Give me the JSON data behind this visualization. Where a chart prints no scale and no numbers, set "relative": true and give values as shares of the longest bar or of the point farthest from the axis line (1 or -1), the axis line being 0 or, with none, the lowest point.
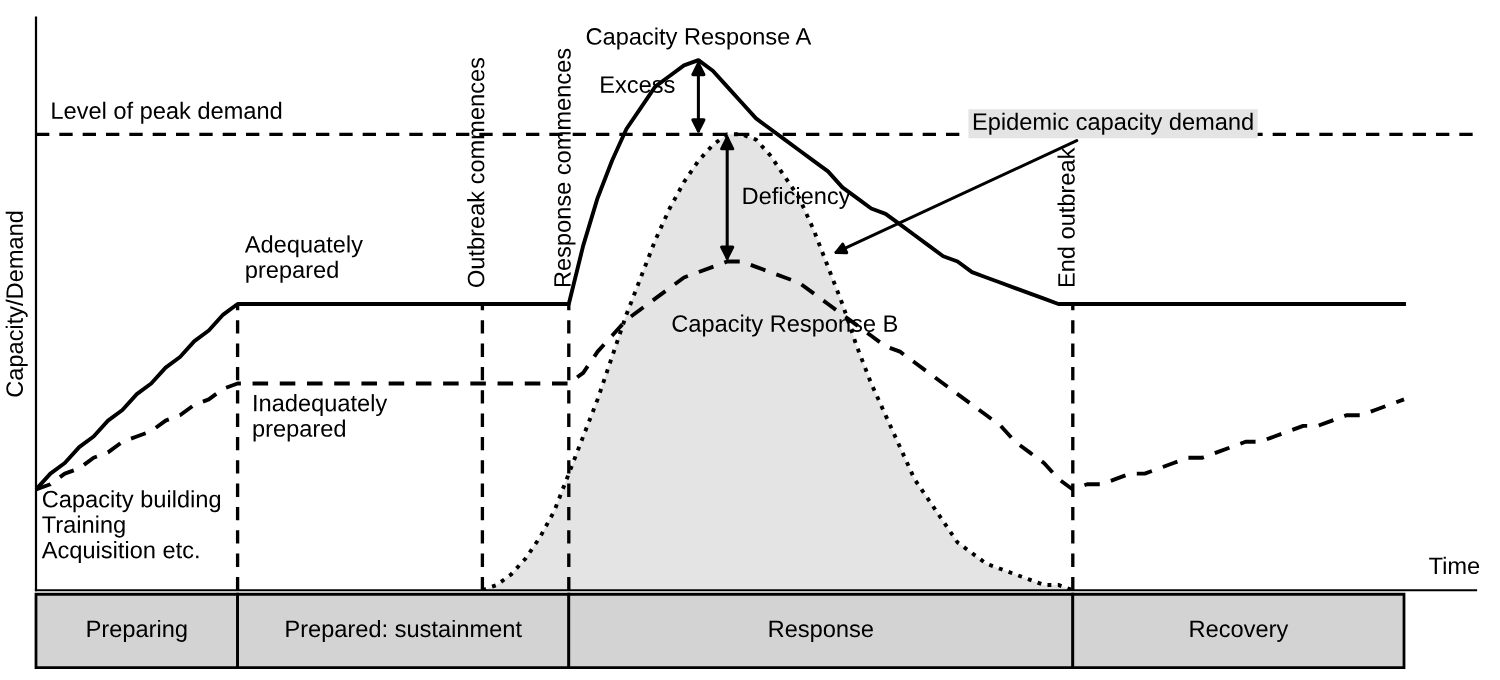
{
  "chart_data": {
    "type": "line",
    "relative": true,
    "xlabel": "Time",
    "ylabel": "Capacity/Demand",
    "categories": [
      null,
      null,
      null,
      null,
      null,
      null,
      null,
      null,
      null,
      null,
      null,
      null,
      null,
      null,
      null,
      null,
      null,
      null,
      null,
      null,
      null,
      null,
      null,
      null,
      null,
      null,
      null,
      null,
      null,
      null,
      null,
      null,
      null,
      null,
      null,
      null,
      null,
      null,
      null,
      null,
      null,
      null,
      null,
      null,
      null,
      null,
      null,
      null,
      null,
      null,
      null,
      null,
      null,
      null,
      null,
      null,
      null,
      null,
      null,
      null,
      null,
      null,
      null,
      null,
      null,
      null,
      null,
      null,
      null,
      null,
      null,
      null,
      null,
      null,
      null,
      null,
      null,
      null,
      null,
      null,
      null,
      null,
      null,
      null,
      null,
      null,
      null,
      null,
      null,
      null,
      null,
      null,
      null,
      null,
      null,
      null,
      null,
      null,
      null,
      null,
      null
    ],
    "series": [
      {
        "name": "Capacity Response A",
        "color": "#000000",
        "line_style": "solid",
        "values": [
          0.19,
          0.22,
          0.24,
          0.27,
          0.29,
          0.32,
          0.34,
          0.37,
          0.39,
          0.42,
          0.44,
          0.47,
          0.49,
          0.52,
          0.54,
          0.54,
          0.54,
          0.54,
          0.54,
          0.54,
          0.54,
          0.54,
          0.54,
          0.54,
          0.54,
          0.54,
          0.54,
          0.54,
          0.54,
          0.54,
          0.54,
          0.54,
          0.54,
          0.54,
          0.54,
          0.54,
          0.54,
          0.54,
          0.65,
          0.74,
          0.81,
          0.87,
          0.91,
          0.95,
          0.97,
          0.99,
          1.0,
          0.98,
          0.95,
          0.92,
          0.89,
          0.87,
          0.85,
          0.83,
          0.81,
          0.79,
          0.76,
          0.74,
          0.72,
          0.71,
          0.69,
          0.67,
          0.65,
          0.63,
          0.62,
          0.6,
          0.59,
          0.58,
          0.57,
          0.56,
          0.55,
          0.54,
          0.54,
          0.54,
          0.54,
          0.54,
          0.54,
          0.54,
          0.54,
          0.54,
          0.54,
          0.54,
          0.54,
          0.54,
          0.54,
          0.54,
          0.54,
          0.54,
          0.54,
          0.54,
          0.54,
          0.54,
          0.54,
          0.54,
          0.54,
          0.54,
          null,
          null,
          null,
          null,
          null
        ]
      },
      {
        "name": "Capacity Response B",
        "color": "#000000",
        "line_style": "dashed",
        "values": [
          0.19,
          0.2,
          0.22,
          0.23,
          0.25,
          0.26,
          0.28,
          0.29,
          0.3,
          0.32,
          0.33,
          0.35,
          0.36,
          0.38,
          0.39,
          0.39,
          0.39,
          0.39,
          0.39,
          0.39,
          0.39,
          0.39,
          0.39,
          0.39,
          0.39,
          0.39,
          0.39,
          0.39,
          0.39,
          0.39,
          0.39,
          0.39,
          0.39,
          0.39,
          0.39,
          0.39,
          0.39,
          0.39,
          0.41,
          0.45,
          0.48,
          0.51,
          0.53,
          0.55,
          0.57,
          0.59,
          0.6,
          0.61,
          0.62,
          0.62,
          0.61,
          0.6,
          0.59,
          0.58,
          0.56,
          0.54,
          0.52,
          0.5,
          0.48,
          0.46,
          0.45,
          0.43,
          0.41,
          0.39,
          0.37,
          0.35,
          0.33,
          0.31,
          0.28,
          0.26,
          0.24,
          0.21,
          0.19,
          0.2,
          0.2,
          0.21,
          0.22,
          0.22,
          0.23,
          0.24,
          0.25,
          0.25,
          0.26,
          0.27,
          0.28,
          0.28,
          0.29,
          0.3,
          0.31,
          0.31,
          0.32,
          0.33,
          0.33,
          0.34,
          0.35,
          0.36,
          null,
          null,
          null,
          null,
          null
        ]
      },
      {
        "name": "Epidemic capacity demand",
        "type": "area",
        "color": "#e4e4e4",
        "line_style": "dotted",
        "values": [
          null,
          null,
          null,
          null,
          null,
          null,
          null,
          null,
          null,
          null,
          null,
          null,
          null,
          null,
          null,
          null,
          null,
          null,
          null,
          null,
          null,
          null,
          null,
          null,
          null,
          null,
          null,
          null,
          null,
          null,
          null,
          0,
          0.01,
          0.03,
          0.06,
          0.1,
          0.15,
          0.22,
          0.29,
          0.36,
          0.44,
          0.52,
          0.59,
          0.66,
          0.72,
          0.77,
          0.81,
          0.84,
          0.86,
          0.86,
          0.85,
          0.82,
          0.78,
          0.74,
          0.68,
          0.61,
          0.54,
          0.46,
          0.39,
          0.33,
          0.27,
          0.21,
          0.17,
          0.13,
          0.09,
          0.07,
          0.05,
          0.04,
          0.03,
          0.02,
          0.01,
          0.01,
          0,
          null,
          null,
          null,
          null,
          null,
          null,
          null,
          null,
          null,
          null,
          null,
          null,
          null,
          null,
          null,
          null,
          null,
          null,
          null,
          null,
          null,
          null,
          null,
          null,
          null,
          null,
          null,
          null
        ]
      }
    ],
    "ref_lines": [
      {
        "axis": "y",
        "value": 0.86,
        "label": "Level of peak demand",
        "line_style": "dashed"
      }
    ],
    "annotations": [
      "Excess",
      "Deficiency",
      "Adequately\nprepared",
      "Inadequately\nprepared",
      "Capacity building\nTraining\nAcquisition etc.",
      "Outbreak commences",
      "Response commences",
      "End outbreak",
      "Preparing",
      "Prepared: sustainment",
      "Response",
      "Recovery"
    ]
  }
}
